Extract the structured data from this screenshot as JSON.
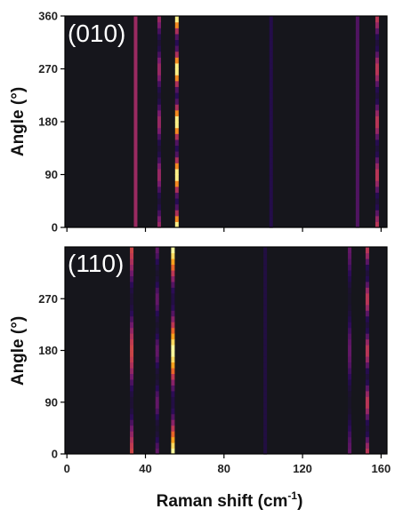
{
  "chart_data": [
    {
      "type": "heatmap",
      "panel_label": "(010)",
      "xlabel": "Raman shift (cm",
      "xlabel_sup": "-1",
      "xlabel_close": ")",
      "ylabel": "Angle (°)",
      "xlim": [
        -1,
        163
      ],
      "ylim": [
        0,
        360
      ],
      "yticks": [
        "0",
        "90",
        "180",
        "270",
        "360"
      ],
      "show_x_tick_labels": false,
      "colormap": "inferno",
      "peaks": [
        {
          "x": 35,
          "intensity": 0.45,
          "modulation": "flat"
        },
        {
          "x": 47,
          "intensity": 0.45,
          "modulation": "cos2_period_90"
        },
        {
          "x": 56,
          "intensity": 1.0,
          "modulation": "cos2_period_90"
        },
        {
          "x": 104,
          "intensity": 0.12,
          "modulation": "flat"
        },
        {
          "x": 148,
          "intensity": 0.25,
          "modulation": "flat"
        },
        {
          "x": 158,
          "intensity": 0.55,
          "modulation": "cos2_period_90"
        }
      ]
    },
    {
      "type": "heatmap",
      "panel_label": "(110)",
      "xlabel": "Raman shift (cm",
      "xlabel_sup": "-1",
      "xlabel_close": ")",
      "ylabel": "Angle (°)",
      "xlim": [
        -1,
        163
      ],
      "ylim": [
        0,
        360
      ],
      "xticks": [
        "0",
        "40",
        "80",
        "120",
        "160"
      ],
      "yticks": [
        "0",
        "90",
        "180",
        "270"
      ],
      "show_x_tick_labels": true,
      "colormap": "inferno",
      "peaks": [
        {
          "x": 33,
          "intensity": 0.6,
          "modulation": "cos2_period_180"
        },
        {
          "x": 46,
          "intensity": 0.3,
          "modulation": "cos2_period_90"
        },
        {
          "x": 54,
          "intensity": 1.0,
          "modulation": "cos2_period_180"
        },
        {
          "x": 101,
          "intensity": 0.1,
          "modulation": "flat"
        },
        {
          "x": 144,
          "intensity": 0.3,
          "modulation": "cos2_period_180"
        },
        {
          "x": 153,
          "intensity": 0.55,
          "modulation": "cos2_period_90"
        }
      ]
    }
  ],
  "colors": {
    "background": "#16161c",
    "frame": "#000000"
  }
}
